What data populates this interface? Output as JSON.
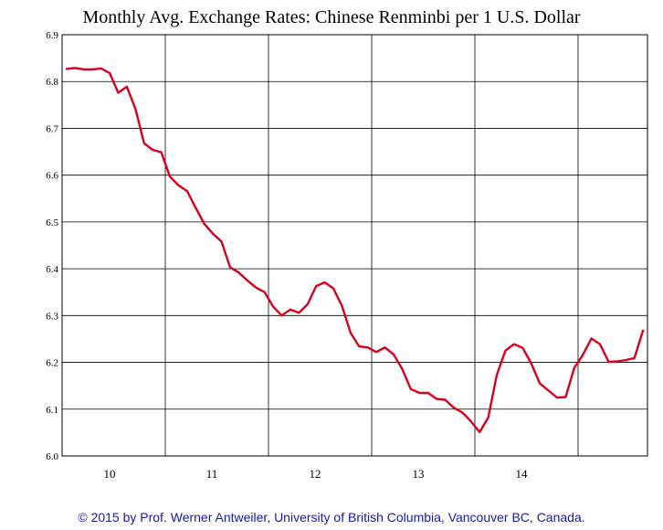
{
  "chart_data": {
    "type": "line",
    "title": "Monthly Avg. Exchange Rates: Chinese Renminbi per 1 U.S. Dollar",
    "xlabel": "",
    "ylabel": "",
    "ylim": [
      6.0,
      6.9
    ],
    "yticks": [
      "6.0",
      "6.1",
      "6.2",
      "6.3",
      "6.4",
      "6.5",
      "6.6",
      "6.7",
      "6.8",
      "6.9"
    ],
    "xticks": [
      "10",
      "11",
      "12",
      "13",
      "14"
    ],
    "grid": true,
    "x_start": "2009-09",
    "series": [
      {
        "values": [
          6.827,
          6.829,
          6.826,
          6.826,
          6.828,
          6.818,
          6.776,
          6.789,
          6.741,
          6.668,
          6.654,
          6.649,
          6.597,
          6.578,
          6.566,
          6.53,
          6.496,
          6.475,
          6.458,
          6.403,
          6.392,
          6.375,
          6.36,
          6.35,
          6.319,
          6.3,
          6.313,
          6.306,
          6.324,
          6.363,
          6.371,
          6.358,
          6.321,
          6.263,
          6.234,
          6.232,
          6.222,
          6.232,
          6.217,
          6.186,
          6.143,
          6.135,
          6.135,
          6.122,
          6.12,
          6.103,
          6.093,
          6.074,
          6.051,
          6.082,
          6.173,
          6.225,
          6.239,
          6.231,
          6.198,
          6.155,
          6.14,
          6.125,
          6.126,
          6.188,
          6.216,
          6.251,
          6.239,
          6.201,
          6.202,
          6.205,
          6.209,
          6.268
        ],
        "color": "#d8001c"
      }
    ]
  },
  "footer": "© 2015 by Prof. Werner Antweiler, University of British Columbia, Vancouver BC, Canada."
}
